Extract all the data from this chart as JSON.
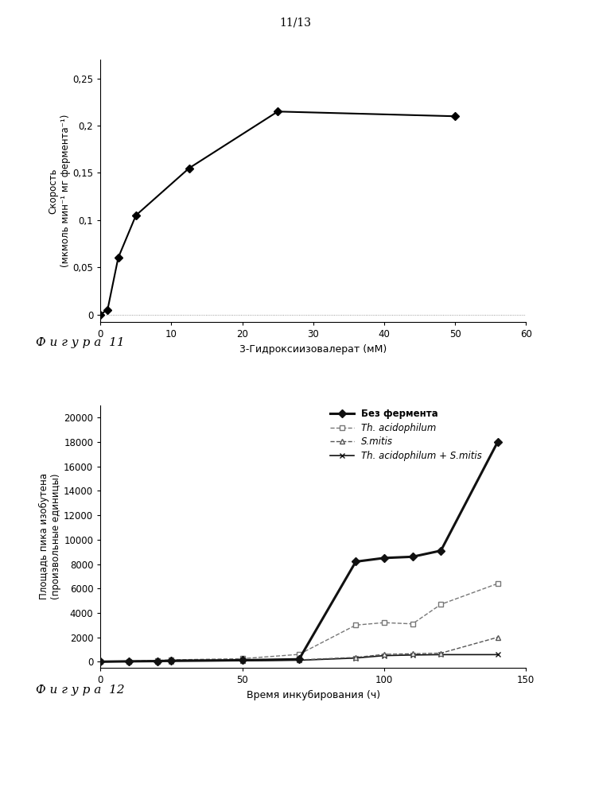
{
  "page_label": "11/13",
  "fig1": {
    "xlabel": "3-Гидроксиизовалерат (мМ)",
    "ylabel": "Скорость\n(мкмоль мин⁻¹ мг фермента⁻¹)",
    "x": [
      0,
      1,
      2.5,
      5,
      12.5,
      25,
      50
    ],
    "y": [
      0,
      0.005,
      0.06,
      0.105,
      0.155,
      0.215,
      0.21
    ],
    "xlim": [
      0,
      60
    ],
    "ylim": [
      -0.008,
      0.27
    ],
    "xticks": [
      0,
      10,
      20,
      30,
      40,
      50,
      60
    ],
    "yticks": [
      0,
      0.05,
      0.1,
      0.15,
      0.2,
      0.25
    ],
    "ytick_labels": [
      "0",
      "0,05",
      "0,1",
      "0,15",
      "0,2",
      "0,25"
    ],
    "figura_label": "Ф и г у р а  11"
  },
  "fig2": {
    "xlabel": "Время инкубирования (ч)",
    "ylabel": "Площадь пика изобутена\n(произвольные единицы)",
    "xlim": [
      0,
      150
    ],
    "ylim": [
      -500,
      21000
    ],
    "xticks": [
      0,
      50,
      100,
      150
    ],
    "yticks": [
      0,
      2000,
      4000,
      6000,
      8000,
      10000,
      12000,
      14000,
      16000,
      18000,
      20000
    ],
    "series": {
      "bez_fermenta": {
        "label": "Без фермента",
        "x": [
          0,
          10,
          20,
          25,
          50,
          70,
          90,
          100,
          110,
          120,
          140
        ],
        "y": [
          0,
          30,
          50,
          80,
          120,
          200,
          8200,
          8500,
          8600,
          9100,
          18000
        ],
        "color": "#111111",
        "linestyle": "-",
        "marker": "D",
        "markersize": 5,
        "linewidth": 2.2
      },
      "th_acidophilum": {
        "label": "Th. acidophilum",
        "x": [
          0,
          10,
          20,
          25,
          50,
          70,
          90,
          100,
          110,
          120,
          140
        ],
        "y": [
          0,
          50,
          100,
          150,
          250,
          600,
          3000,
          3200,
          3100,
          4700,
          6400
        ],
        "color": "#777777",
        "linestyle": "--",
        "marker": "s",
        "markersize": 4,
        "linewidth": 1.0
      },
      "s_mitis": {
        "label": "S.mitis",
        "x": [
          0,
          10,
          20,
          25,
          50,
          70,
          90,
          100,
          110,
          120,
          140
        ],
        "y": [
          0,
          20,
          40,
          60,
          100,
          150,
          350,
          600,
          650,
          700,
          2000
        ],
        "color": "#555555",
        "linestyle": "--",
        "marker": "^",
        "markersize": 4,
        "linewidth": 1.0
      },
      "combined": {
        "label": "Th. acidophilum + S.mitis",
        "x": [
          0,
          10,
          20,
          25,
          50,
          70,
          90,
          100,
          110,
          120,
          140
        ],
        "y": [
          0,
          20,
          30,
          50,
          80,
          120,
          300,
          500,
          550,
          580,
          580
        ],
        "color": "#111111",
        "linestyle": "-",
        "marker": "x",
        "markersize": 5,
        "linewidth": 1.2
      }
    },
    "figura_label": "Ф и г у р а  12"
  }
}
